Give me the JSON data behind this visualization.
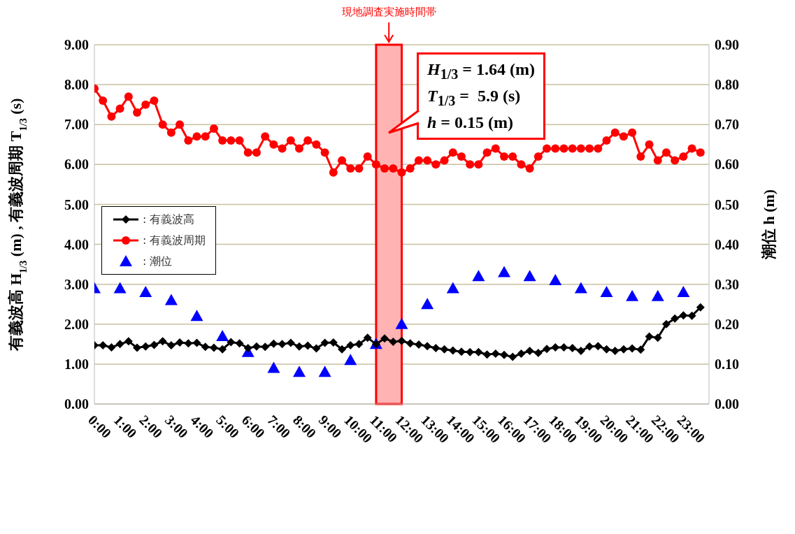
{
  "chart_data": {
    "type": "line",
    "ylabel": "有義波高  H$_{1/3}$ (m) , 有義波周期  T$_{1/3}$ (s)",
    "y2label": "潮位  h (m)",
    "x": [
      0,
      0.333,
      0.667,
      1,
      1.333,
      1.667,
      2,
      2.333,
      2.667,
      3,
      3.333,
      3.667,
      4,
      4.333,
      4.667,
      5,
      5.333,
      5.667,
      6,
      6.333,
      6.667,
      7,
      7.333,
      7.667,
      8,
      8.333,
      8.667,
      9,
      9.333,
      9.667,
      10,
      10.333,
      10.667,
      11,
      11.333,
      11.667,
      12,
      12.333,
      12.667,
      13,
      13.333,
      13.667,
      14,
      14.333,
      14.667,
      15,
      15.333,
      15.667,
      16,
      16.333,
      16.667,
      17,
      17.333,
      17.667,
      18,
      18.333,
      18.667,
      19,
      19.333,
      19.667,
      20,
      20.333,
      20.667,
      21,
      21.333,
      21.667,
      22,
      22.333,
      22.667,
      23,
      23.333,
      23.667
    ],
    "xlim": [
      0,
      24
    ],
    "xticks": [
      {
        "value": 0,
        "label": "0:00"
      },
      {
        "value": 1,
        "label": "1:00"
      },
      {
        "value": 2,
        "label": "2:00"
      },
      {
        "value": 3,
        "label": "3:00"
      },
      {
        "value": 4,
        "label": "4:00"
      },
      {
        "value": 5,
        "label": "5:00"
      },
      {
        "value": 6,
        "label": "6:00"
      },
      {
        "value": 7,
        "label": "7:00"
      },
      {
        "value": 8,
        "label": "8:00"
      },
      {
        "value": 9,
        "label": "9:00"
      },
      {
        "value": 10,
        "label": "10:00"
      },
      {
        "value": 11,
        "label": "11:00"
      },
      {
        "value": 12,
        "label": "12:00"
      },
      {
        "value": 13,
        "label": "13:00"
      },
      {
        "value": 14,
        "label": "14:00"
      },
      {
        "value": 15,
        "label": "15:00"
      },
      {
        "value": 16,
        "label": "16:00"
      },
      {
        "value": 17,
        "label": "17:00"
      },
      {
        "value": 18,
        "label": "18:00"
      },
      {
        "value": 19,
        "label": "19:00"
      },
      {
        "value": 20,
        "label": "20:00"
      },
      {
        "value": 21,
        "label": "21:00"
      },
      {
        "value": 22,
        "label": "22:00"
      },
      {
        "value": 23,
        "label": "23:00"
      }
    ],
    "ylim": [
      0,
      9
    ],
    "yticks": [
      {
        "value": 0,
        "label": "0.00"
      },
      {
        "value": 1,
        "label": "1.00"
      },
      {
        "value": 2,
        "label": "2.00"
      },
      {
        "value": 3,
        "label": "3.00"
      },
      {
        "value": 4,
        "label": "4.00"
      },
      {
        "value": 5,
        "label": "5.00"
      },
      {
        "value": 6,
        "label": "6.00"
      },
      {
        "value": 7,
        "label": "7.00"
      },
      {
        "value": 8,
        "label": "8.00"
      },
      {
        "value": 9,
        "label": "9.00"
      }
    ],
    "y2lim": [
      0,
      0.9
    ],
    "y2ticks": [
      {
        "value": 0,
        "label": "0.00"
      },
      {
        "value": 0.1,
        "label": "0.10"
      },
      {
        "value": 0.2,
        "label": "0.20"
      },
      {
        "value": 0.3,
        "label": "0.30"
      },
      {
        "value": 0.4,
        "label": "0.40"
      },
      {
        "value": 0.5,
        "label": "0.50"
      },
      {
        "value": 0.6,
        "label": "0.60"
      },
      {
        "value": 0.7,
        "label": "0.70"
      },
      {
        "value": 0.8,
        "label": "0.80"
      },
      {
        "value": 0.9,
        "label": "0.90"
      }
    ],
    "grid": "y",
    "legend": "left",
    "line_style": "solid",
    "series": [
      {
        "name": ": 有義波高",
        "color": "#000000",
        "marker": "diamond",
        "values": [
          1.47,
          1.47,
          1.42,
          1.5,
          1.57,
          1.41,
          1.44,
          1.48,
          1.57,
          1.47,
          1.54,
          1.52,
          1.53,
          1.43,
          1.41,
          1.37,
          1.55,
          1.52,
          1.4,
          1.44,
          1.43,
          1.51,
          1.5,
          1.53,
          1.44,
          1.46,
          1.39,
          1.53,
          1.54,
          1.37,
          1.47,
          1.5,
          1.66,
          1.5,
          1.64,
          1.56,
          1.58,
          1.52,
          1.49,
          1.45,
          1.4,
          1.37,
          1.34,
          1.31,
          1.3,
          1.3,
          1.24,
          1.26,
          1.23,
          1.18,
          1.26,
          1.33,
          1.28,
          1.38,
          1.42,
          1.42,
          1.4,
          1.33,
          1.44,
          1.45,
          1.37,
          1.33,
          1.37,
          1.39,
          1.36,
          1.69,
          1.66,
          2.0,
          2.14,
          2.22,
          2.21,
          2.42
        ]
      },
      {
        "name": ": 有義波周期",
        "color": "#ff0000",
        "marker": "circle",
        "values": [
          7.9,
          7.6,
          7.2,
          7.4,
          7.7,
          7.3,
          7.5,
          7.6,
          7.0,
          6.8,
          7.0,
          6.6,
          6.7,
          6.7,
          6.9,
          6.6,
          6.6,
          6.6,
          6.3,
          6.3,
          6.7,
          6.5,
          6.4,
          6.6,
          6.4,
          6.6,
          6.5,
          6.3,
          5.8,
          6.1,
          5.9,
          5.9,
          6.2,
          6.0,
          5.9,
          5.9,
          5.8,
          5.9,
          6.1,
          6.1,
          6.0,
          6.1,
          6.3,
          6.2,
          6.0,
          6.0,
          6.3,
          6.4,
          6.2,
          6.2,
          6.0,
          5.9,
          6.2,
          6.4,
          6.4,
          6.4,
          6.4,
          6.4,
          6.4,
          6.4,
          6.6,
          6.8,
          6.7,
          6.8,
          6.2,
          6.5,
          6.1,
          6.3,
          6.1,
          6.2,
          6.4,
          6.3
        ]
      },
      {
        "name": ": 潮位",
        "type": "scatter",
        "axis": "y2",
        "color": "#0000ff",
        "marker": "triangle",
        "x": [
          0,
          1,
          2,
          3,
          4,
          5,
          6,
          7,
          8,
          9,
          10,
          11,
          12,
          13,
          14,
          15,
          16,
          17,
          18,
          19,
          20,
          21,
          22,
          23
        ],
        "values": [
          0.29,
          0.29,
          0.28,
          0.26,
          0.22,
          0.17,
          0.13,
          0.09,
          0.08,
          0.08,
          0.11,
          0.15,
          0.2,
          0.25,
          0.29,
          0.32,
          0.33,
          0.32,
          0.31,
          0.29,
          0.28,
          0.27,
          0.27,
          0.28
        ]
      }
    ],
    "bands": [
      {
        "axis": "x",
        "from": 11,
        "to": 12,
        "label": "現地調査実施時間帯",
        "color": "#ffb3b3"
      }
    ],
    "annotations": [
      "H$_{1/3}$ = 1.64 (m)",
      "T$_{1/3}$ =  5.9 (s)",
      "h = 0.15 (m)"
    ]
  }
}
